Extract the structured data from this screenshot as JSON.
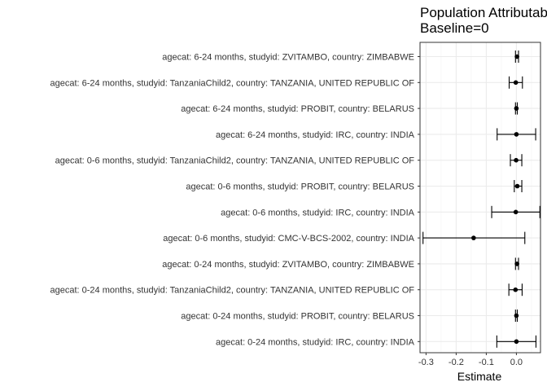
{
  "chart_data": {
    "type": "scatter",
    "title_lines": [
      "Population Attributable",
      "Baseline=0"
    ],
    "xlabel": "Estimate",
    "ylabel": "",
    "xlim": [
      -0.32,
      0.08
    ],
    "xticks": [
      -0.3,
      -0.2,
      -0.1,
      0.0
    ],
    "xtick_labels": [
      "-0.3",
      "-0.2",
      "-0.1",
      "0.0"
    ],
    "grid": true,
    "rows": [
      {
        "label": "agecat: 6-24 months, studyid: ZVITAMBO, country: ZIMBABWE",
        "estimate": 0.002,
        "lower": -0.003,
        "upper": 0.007
      },
      {
        "label": "agecat: 6-24 months, studyid: TanzaniaChild2, country: TANZANIA, UNITED REPUBLIC OF",
        "estimate": -0.002,
        "lower": -0.024,
        "upper": 0.02
      },
      {
        "label": "agecat: 6-24 months, studyid: PROBIT, country: BELARUS",
        "estimate": 0.0,
        "lower": -0.003,
        "upper": 0.003
      },
      {
        "label": "agecat: 6-24 months, studyid: IRC, country: INDIA",
        "estimate": 0.0,
        "lower": -0.064,
        "upper": 0.064
      },
      {
        "label": "agecat: 0-6 months, studyid: TanzaniaChild2, country: TANZANIA, UNITED REPUBLIC OF",
        "estimate": -0.001,
        "lower": -0.02,
        "upper": 0.018
      },
      {
        "label": "agecat: 0-6 months, studyid: PROBIT, country: BELARUS",
        "estimate": 0.003,
        "lower": -0.007,
        "upper": 0.018
      },
      {
        "label": "agecat: 0-6 months, studyid: IRC, country: INDIA",
        "estimate": -0.002,
        "lower": -0.082,
        "upper": 0.078
      },
      {
        "label": "agecat: 0-6 months, studyid: CMC-V-BCS-2002, country: INDIA",
        "estimate": -0.142,
        "lower": -0.31,
        "upper": 0.028
      },
      {
        "label": "agecat: 0-24 months, studyid: ZVITAMBO, country: ZIMBABWE",
        "estimate": 0.002,
        "lower": -0.003,
        "upper": 0.007
      },
      {
        "label": "agecat: 0-24 months, studyid: TanzaniaChild2, country: TANZANIA, UNITED REPUBLIC OF",
        "estimate": -0.003,
        "lower": -0.025,
        "upper": 0.019
      },
      {
        "label": "agecat: 0-24 months, studyid: PROBIT, country: BELARUS",
        "estimate": 0.0,
        "lower": -0.003,
        "upper": 0.003
      },
      {
        "label": "agecat: 0-24 months, studyid: IRC, country: INDIA",
        "estimate": 0.0,
        "lower": -0.065,
        "upper": 0.065
      }
    ]
  }
}
